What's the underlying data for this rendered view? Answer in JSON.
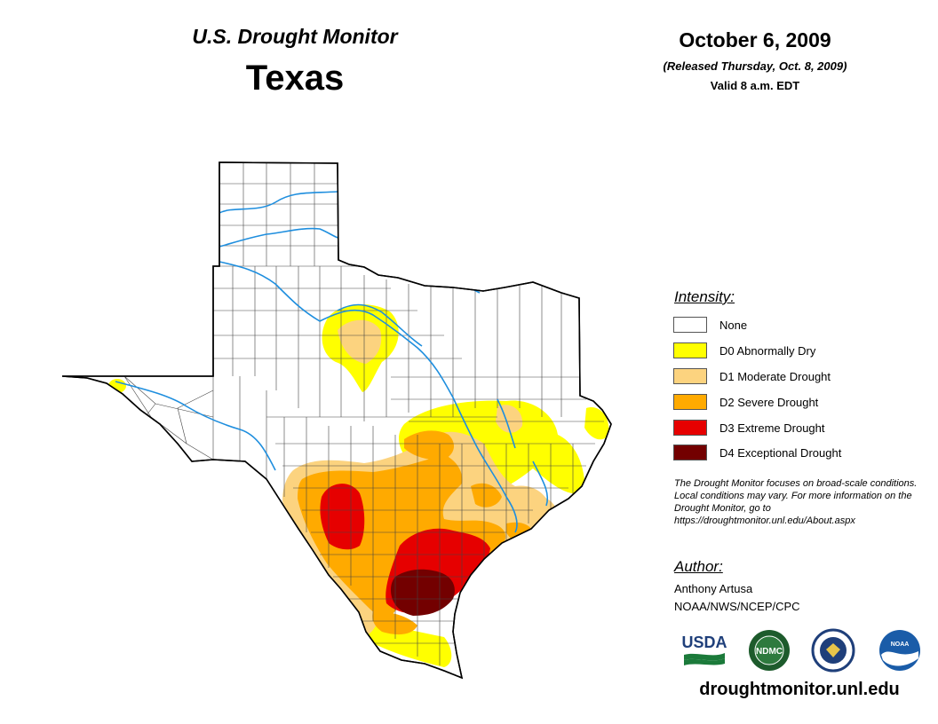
{
  "header": {
    "product": "U.S. Drought Monitor",
    "region": "Texas",
    "date": "October 6, 2009",
    "released": "(Released Thursday, Oct. 8, 2009)",
    "valid": "Valid 8 a.m. EDT"
  },
  "legend": {
    "title": "Intensity:",
    "items": [
      {
        "label": "None",
        "color": "#ffffff"
      },
      {
        "label": "D0 Abnormally Dry",
        "color": "#ffff00"
      },
      {
        "label": "D1 Moderate Drought",
        "color": "#fcd37f"
      },
      {
        "label": "D2 Severe Drought",
        "color": "#ffaa00"
      },
      {
        "label": "D3 Extreme Drought",
        "color": "#e60000"
      },
      {
        "label": "D4 Exceptional Drought",
        "color": "#730000"
      }
    ]
  },
  "note": "The Drought Monitor focuses on broad-scale conditions. Local conditions may vary. For more information on the Drought Monitor, go to https://droughtmonitor.unl.edu/About.aspx",
  "author": {
    "title": "Author:",
    "name": "Anthony Artusa",
    "org": "NOAA/NWS/NCEP/CPC"
  },
  "logos": [
    {
      "text": "USDA",
      "icon": "usda-logo"
    },
    {
      "text": "NDMC",
      "icon": "ndmc-logo"
    },
    {
      "text": "",
      "icon": "doc-seal-logo"
    },
    {
      "text": "NOAA",
      "icon": "noaa-logo"
    }
  ],
  "website": "droughtmonitor.unl.edu",
  "colors": {
    "river": "#1e8ede",
    "county_line": "#444444"
  }
}
